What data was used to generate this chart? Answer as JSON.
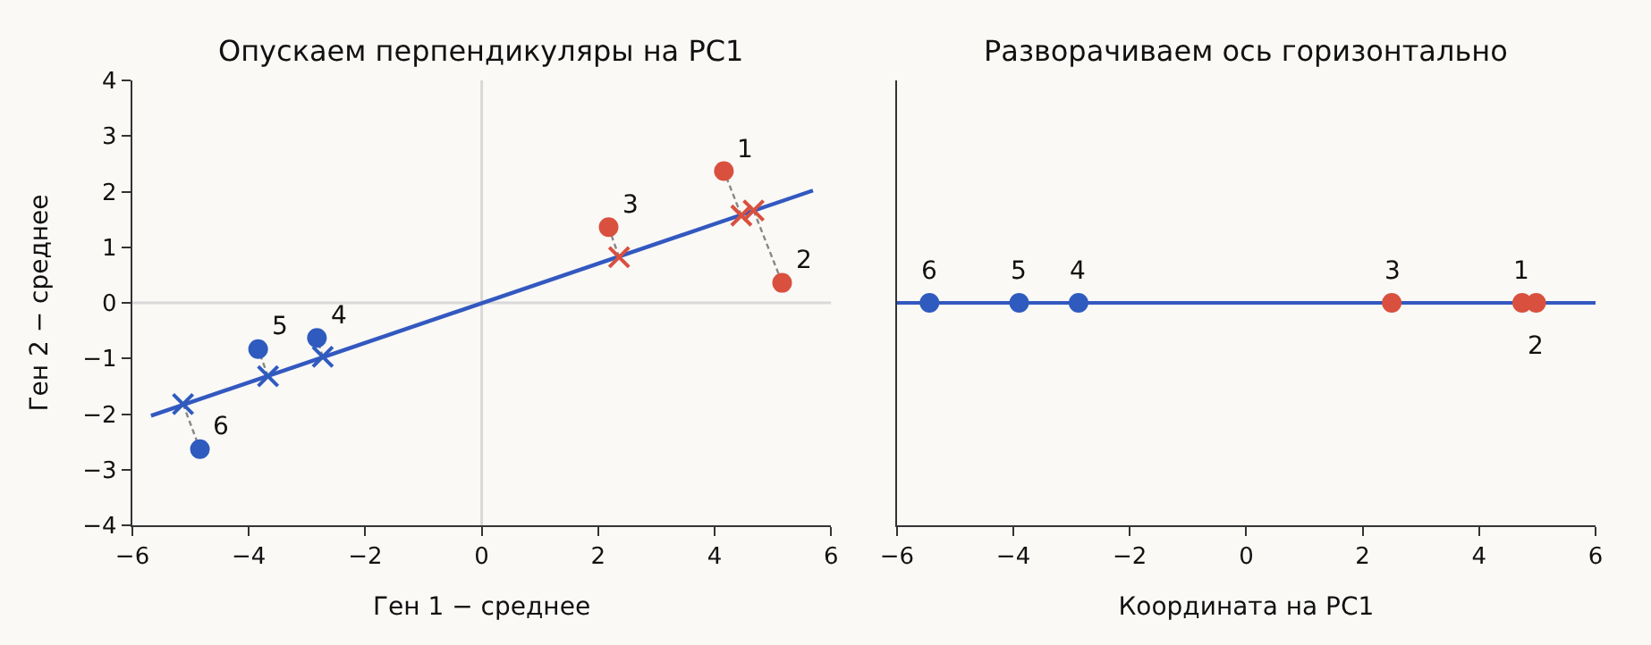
{
  "chart_data": [
    {
      "type": "scatter",
      "title": "Опускаем перпендикуляры на PC1",
      "xlabel": "Ген 1 − среднее",
      "ylabel": "Ген 2 − среднее",
      "xlim": [
        -6,
        6
      ],
      "xticks": [
        {
          "value": -6,
          "label": "−6"
        },
        {
          "value": -4,
          "label": "−4"
        },
        {
          "value": -2,
          "label": "−2"
        },
        0,
        2,
        4,
        6
      ],
      "ylim": [
        -4,
        4
      ],
      "yticks": [
        {
          "value": -4,
          "label": "−4"
        },
        {
          "value": -3,
          "label": "−3"
        },
        {
          "value": -2,
          "label": "−2"
        },
        {
          "value": -1,
          "label": "−1"
        },
        0,
        1,
        2,
        3,
        4
      ],
      "grid": false,
      "ref_lines": [
        {
          "axis": "y",
          "value": 0,
          "color": "#d9d9d9"
        },
        {
          "axis": "x",
          "value": 0,
          "color": "#d9d9d9"
        }
      ],
      "series": [
        {
          "type": "line",
          "color": "#888888",
          "line_style": "dashed",
          "x": [
            4.46,
            4.16
          ],
          "values": [
            1.57,
            2.37
          ]
        },
        {
          "type": "line",
          "color": "#888888",
          "line_style": "dashed",
          "x": [
            4.67,
            5.16
          ],
          "values": [
            1.66,
            0.36
          ]
        },
        {
          "type": "line",
          "color": "#888888",
          "line_style": "dashed",
          "x": [
            2.36,
            2.18
          ],
          "values": [
            0.82,
            1.36
          ]
        },
        {
          "type": "line",
          "color": "#888888",
          "line_style": "dashed",
          "x": [
            -2.73,
            -2.83
          ],
          "values": [
            -0.97,
            -0.63
          ]
        },
        {
          "type": "line",
          "color": "#888888",
          "line_style": "dashed",
          "x": [
            -3.67,
            -3.84
          ],
          "values": [
            -1.32,
            -0.83
          ]
        },
        {
          "type": "line",
          "color": "#888888",
          "line_style": "dashed",
          "x": [
            -5.13,
            -4.84
          ],
          "values": [
            -1.82,
            -2.63
          ]
        },
        {
          "type": "line",
          "color": "#3358c0",
          "line_style": "solid",
          "x": [
            -5.68,
            5.69
          ],
          "values": [
            -2.03,
            2.02
          ]
        },
        {
          "color": "#d9503f",
          "marker": "circle",
          "x": [
            4.16,
            5.16,
            2.18
          ],
          "values": [
            2.37,
            0.36,
            1.36
          ]
        },
        {
          "color": "#2f5bbf",
          "marker": "circle",
          "x": [
            -2.83,
            -3.84,
            -4.84
          ],
          "values": [
            -0.63,
            -0.83,
            -2.63
          ]
        },
        {
          "color": "#d9503f",
          "marker": "cross",
          "x": [
            4.46,
            4.67,
            2.36
          ],
          "values": [
            1.57,
            1.66,
            0.82
          ]
        },
        {
          "color": "#2f5bbf",
          "marker": "cross",
          "x": [
            -2.73,
            -3.67,
            -5.13
          ],
          "values": [
            -0.97,
            -1.32,
            -1.82
          ]
        }
      ],
      "annotations": [
        {
          "text": "1",
          "x": 4.16,
          "y": 2.37
        },
        {
          "text": "2",
          "x": 5.16,
          "y": 0.36
        },
        {
          "text": "3",
          "x": 2.18,
          "y": 1.36
        },
        {
          "text": "4",
          "x": -2.83,
          "y": -0.63
        },
        {
          "text": "5",
          "x": -3.84,
          "y": -0.83
        },
        {
          "text": "6",
          "x": -4.84,
          "y": -2.63
        }
      ]
    },
    {
      "type": "scatter",
      "title": "Разворачиваем ось горизонтально",
      "xlabel": "Координата на PC1",
      "xlim": [
        -6,
        6
      ],
      "xticks": [
        {
          "value": -6,
          "label": "−6"
        },
        {
          "value": -4,
          "label": "−4"
        },
        {
          "value": -2,
          "label": "−2"
        },
        0,
        2,
        4,
        6
      ],
      "ylim": [
        -4,
        4
      ],
      "tick_labels": "x",
      "grid": false,
      "ref_lines": [
        {
          "axis": "y",
          "value": 0,
          "color": "#3358c0"
        }
      ],
      "series": [
        {
          "color": "#d9503f",
          "marker": "circle",
          "x": [
            4.74,
            4.98,
            2.5
          ],
          "values": [
            0,
            0,
            0
          ]
        },
        {
          "color": "#2f5bbf",
          "marker": "circle",
          "x": [
            -2.88,
            -3.9,
            -5.44
          ],
          "values": [
            0,
            0,
            0
          ]
        }
      ],
      "annotations": [
        {
          "text": "1",
          "x": 4.74,
          "y": 0
        },
        {
          "text": "2",
          "x": 4.98,
          "y": 0
        },
        {
          "text": "3",
          "x": 2.5,
          "y": 0
        },
        {
          "text": "4",
          "x": -2.88,
          "y": 0
        },
        {
          "text": "5",
          "x": -3.9,
          "y": 0
        },
        {
          "text": "6",
          "x": -5.44,
          "y": 0
        }
      ]
    }
  ]
}
